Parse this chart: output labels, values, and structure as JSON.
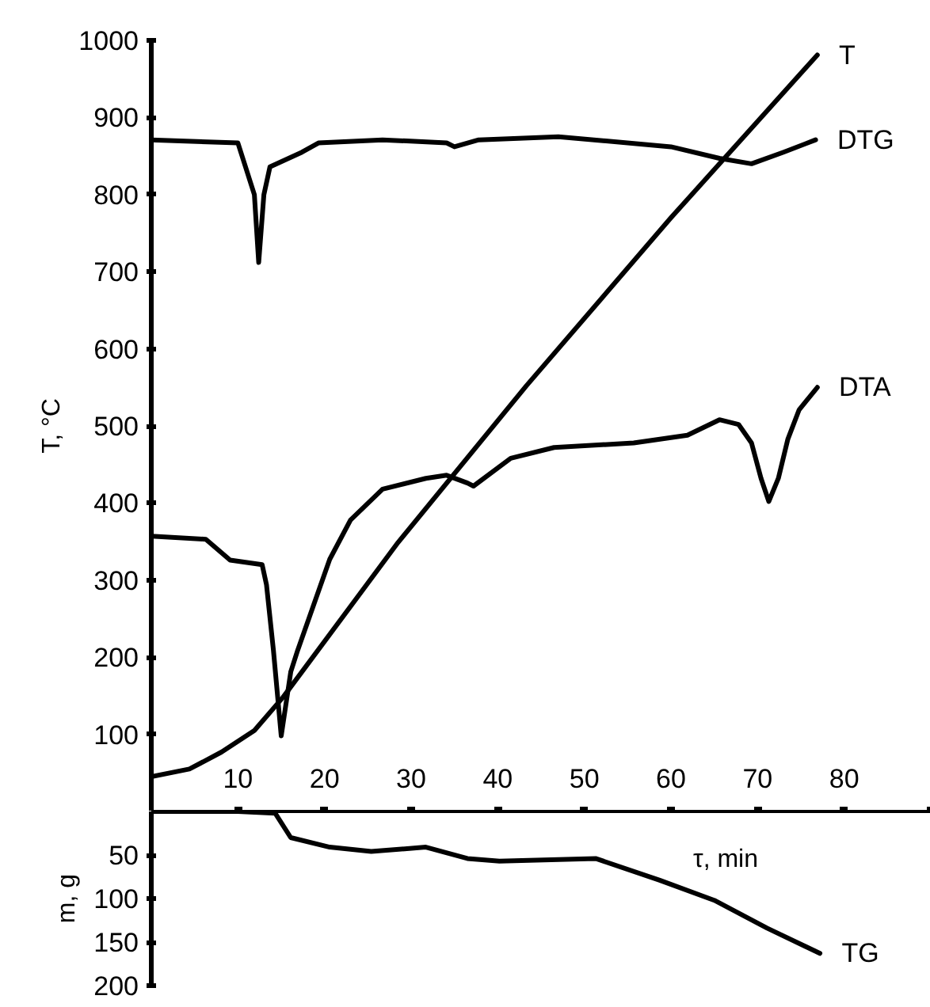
{
  "chart_data": [
    {
      "type": "line",
      "ylabel": "T, °C",
      "xlim": [
        0,
        90
      ],
      "ylim": [
        0,
        1000
      ],
      "yticks": [
        100,
        200,
        300,
        400,
        500,
        600,
        700,
        800,
        900,
        1000
      ],
      "xticks": [
        10,
        20,
        30,
        40,
        50,
        60,
        70,
        80,
        {
          "value": 90,
          "label": null
        }
      ],
      "series": [
        {
          "name": "T",
          "color": "#000000",
          "x": [
            0,
            4.4,
            8.1,
            11.9,
            15.2,
            28.5,
            43.3,
            60,
            76.9
          ],
          "values": [
            45,
            55,
            77,
            105,
            148,
            349,
            552,
            770,
            981
          ]
        },
        {
          "name": "DTG",
          "color": "#000000",
          "x": [
            0,
            10,
            11.9,
            12.4,
            13,
            13.7,
            17.4,
            19.3,
            26.7,
            34.1,
            35,
            37.8,
            47,
            60,
            65.6,
            69.3,
            73,
            76.7
          ],
          "values": [
            871,
            867,
            800,
            712,
            800,
            836,
            855,
            867,
            871,
            867,
            862,
            871,
            875,
            862,
            847,
            840,
            855,
            871
          ]
        },
        {
          "name": "DTA",
          "color": "#000000",
          "x": [
            0,
            6.3,
            9.1,
            12.8,
            13.3,
            14.1,
            15,
            16.1,
            16.9,
            20.6,
            23,
            26.7,
            31.7,
            34.1,
            36.5,
            37.2,
            41.5,
            46.5,
            55.7,
            61.9,
            65.6,
            67.8,
            69.3,
            70.4,
            71.3,
            72.4,
            73.5,
            74.8,
            76.9
          ],
          "values": [
            357,
            353,
            326,
            320,
            294,
            209,
            98,
            181,
            209,
            327,
            378,
            418,
            432,
            436,
            426,
            422,
            458,
            472,
            478,
            488,
            508,
            502,
            478,
            432,
            402,
            432,
            483,
            521,
            550
          ]
        }
      ]
    },
    {
      "type": "line",
      "ylabel": "m, g",
      "xlabel": "τ, min",
      "xlim": [
        0,
        90
      ],
      "ylim": [
        200,
        0
      ],
      "yticks": [
        50,
        100,
        150,
        200
      ],
      "tick_labels": "y",
      "series": [
        {
          "name": "TG",
          "color": "#000000",
          "x": [
            0,
            10,
            14.3,
            16.1,
            20.6,
            25.4,
            31.7,
            36.5,
            40.2,
            51.3,
            58.7,
            65,
            71.1,
            77.2
          ],
          "values": [
            0,
            0,
            2,
            30,
            41,
            46,
            41,
            54,
            57,
            54,
            79,
            102,
            134,
            163
          ]
        }
      ]
    }
  ]
}
